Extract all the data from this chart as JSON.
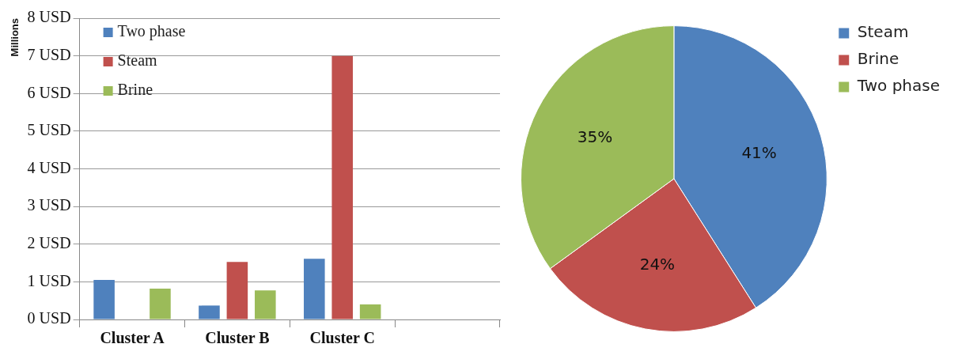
{
  "chart_data": [
    {
      "type": "bar",
      "ylabel": "Millions",
      "categories": [
        "Cluster A",
        "Cluster B",
        "Cluster C",
        null
      ],
      "series": [
        {
          "name": "Two phase",
          "color": "#4f81bd",
          "values": [
            1.05,
            0.37,
            1.61,
            null
          ]
        },
        {
          "name": "Steam",
          "color": "#c0504d",
          "values": [
            null,
            1.53,
            7.0,
            null
          ]
        },
        {
          "name": "Brine",
          "color": "#9bbb59",
          "values": [
            0.82,
            0.77,
            0.4,
            null
          ]
        }
      ],
      "ylim": [
        0,
        8
      ],
      "yticks": [
        {
          "value": 0,
          "label": "0 USD"
        },
        {
          "value": 1,
          "label": "1 USD"
        },
        {
          "value": 2,
          "label": "2 USD"
        },
        {
          "value": 3,
          "label": "3 USD"
        },
        {
          "value": 4,
          "label": "4 USD"
        },
        {
          "value": 5,
          "label": "5 USD"
        },
        {
          "value": 6,
          "label": "6 USD"
        },
        {
          "value": 7,
          "label": "7 USD"
        },
        {
          "value": 8,
          "label": "8 USD"
        }
      ],
      "grid": "y",
      "legend": "top left"
    },
    {
      "type": "pie",
      "categories": [
        "Steam",
        "Brine",
        "Two phase"
      ],
      "values": [
        41,
        24,
        35
      ],
      "colors": [
        "#4f81bd",
        "#c0504d",
        "#9bbb59"
      ],
      "value_labels": [
        "41%",
        "24%",
        "35%"
      ],
      "legend": "top right"
    }
  ]
}
